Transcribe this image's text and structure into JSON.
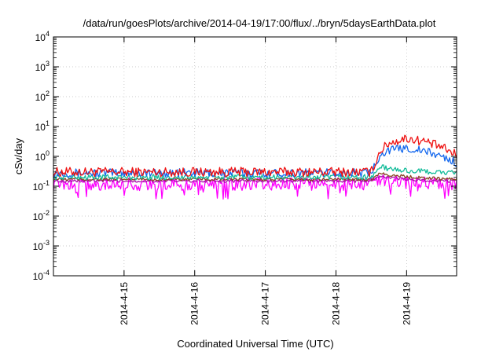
{
  "chart_data": {
    "type": "line",
    "title": "/data/run/goesPlots/archive/2014-04-19/17:00/flux/../bryn/5daysEarthData.plot",
    "xlabel": "Coordinated Universal Time (UTC)",
    "ylabel": "cSv/day",
    "yscale": "log",
    "ylim": [
      0.0001,
      10000
    ],
    "xlim": [
      "2014-04-14T00:00",
      "2014-04-19T17:00"
    ],
    "grid": true,
    "x_ticks": [
      "2014-4-15",
      "2014-4-16",
      "2014-4-17",
      "2014-4-18",
      "2014-4-19"
    ],
    "y_ticks": [
      {
        "base": "10",
        "exp": "-4"
      },
      {
        "base": "10",
        "exp": "-3"
      },
      {
        "base": "10",
        "exp": "-2"
      },
      {
        "base": "10",
        "exp": "-1"
      },
      {
        "base": "10",
        "exp": "0"
      },
      {
        "base": "10",
        "exp": "1"
      },
      {
        "base": "10",
        "exp": "2"
      },
      {
        "base": "10",
        "exp": "3"
      },
      {
        "base": "10",
        "exp": "4"
      }
    ],
    "series": [
      {
        "color": "#ee1111",
        "x": [
          "2014-04-14T00:00",
          "2014-04-15T00:00",
          "2014-04-16T00:00",
          "2014-04-17T00:00",
          "2014-04-18T00:00",
          "2014-04-18T12:00",
          "2014-04-18T15:00",
          "2014-04-18T18:00",
          "2014-04-19T00:00",
          "2014-04-19T06:00",
          "2014-04-19T12:00",
          "2014-04-19T17:00"
        ],
        "values": [
          0.3,
          0.3,
          0.3,
          0.3,
          0.3,
          0.3,
          1.5,
          2.8,
          4.0,
          3.2,
          2.0,
          1.1
        ]
      },
      {
        "color": "#1166ee",
        "x": [
          "2014-04-14T00:00",
          "2014-04-15T00:00",
          "2014-04-16T00:00",
          "2014-04-17T00:00",
          "2014-04-18T00:00",
          "2014-04-18T12:00",
          "2014-04-18T15:00",
          "2014-04-18T18:00",
          "2014-04-19T00:00",
          "2014-04-19T06:00",
          "2014-04-19T12:00",
          "2014-04-19T17:00"
        ],
        "values": [
          0.28,
          0.28,
          0.28,
          0.28,
          0.28,
          0.28,
          1.2,
          1.6,
          1.9,
          1.5,
          1.0,
          0.6
        ]
      },
      {
        "color": "#11bb99",
        "x": [
          "2014-04-14T00:00",
          "2014-04-15T00:00",
          "2014-04-16T00:00",
          "2014-04-17T00:00",
          "2014-04-18T00:00",
          "2014-04-18T12:00",
          "2014-04-18T15:00",
          "2014-04-18T18:00",
          "2014-04-19T00:00",
          "2014-04-19T06:00",
          "2014-04-19T12:00",
          "2014-04-19T17:00"
        ],
        "values": [
          0.2,
          0.2,
          0.2,
          0.2,
          0.2,
          0.2,
          0.45,
          0.38,
          0.33,
          0.31,
          0.29,
          0.27
        ]
      },
      {
        "color": "#884422",
        "x": [
          "2014-04-14T00:00",
          "2014-04-15T00:00",
          "2014-04-16T00:00",
          "2014-04-17T00:00",
          "2014-04-18T00:00",
          "2014-04-18T12:00",
          "2014-04-18T15:00",
          "2014-04-18T18:00",
          "2014-04-19T00:00",
          "2014-04-19T06:00",
          "2014-04-19T12:00",
          "2014-04-19T17:00"
        ],
        "values": [
          0.17,
          0.17,
          0.17,
          0.17,
          0.17,
          0.17,
          0.28,
          0.24,
          0.21,
          0.19,
          0.18,
          0.17
        ]
      },
      {
        "color": "#aa11aa",
        "x": [
          "2014-04-14T00:00",
          "2014-04-15T00:00",
          "2014-04-16T00:00",
          "2014-04-17T00:00",
          "2014-04-18T00:00",
          "2014-04-18T12:00",
          "2014-04-18T15:00",
          "2014-04-18T18:00",
          "2014-04-19T00:00",
          "2014-04-19T06:00",
          "2014-04-19T12:00",
          "2014-04-19T17:00"
        ],
        "values": [
          0.15,
          0.15,
          0.15,
          0.15,
          0.15,
          0.15,
          0.22,
          0.19,
          0.17,
          0.16,
          0.15,
          0.15
        ]
      },
      {
        "color": "#ff00ff",
        "x": [
          "2014-04-14T00:00",
          "2014-04-15T00:00",
          "2014-04-16T00:00",
          "2014-04-17T00:00",
          "2014-04-18T00:00",
          "2014-04-18T12:00",
          "2014-04-18T15:00",
          "2014-04-18T18:00",
          "2014-04-19T00:00",
          "2014-04-19T06:00",
          "2014-04-19T12:00",
          "2014-04-19T17:00"
        ],
        "values": [
          0.12,
          0.12,
          0.12,
          0.12,
          0.12,
          0.12,
          0.18,
          0.16,
          0.14,
          0.13,
          0.12,
          0.12
        ]
      }
    ]
  }
}
